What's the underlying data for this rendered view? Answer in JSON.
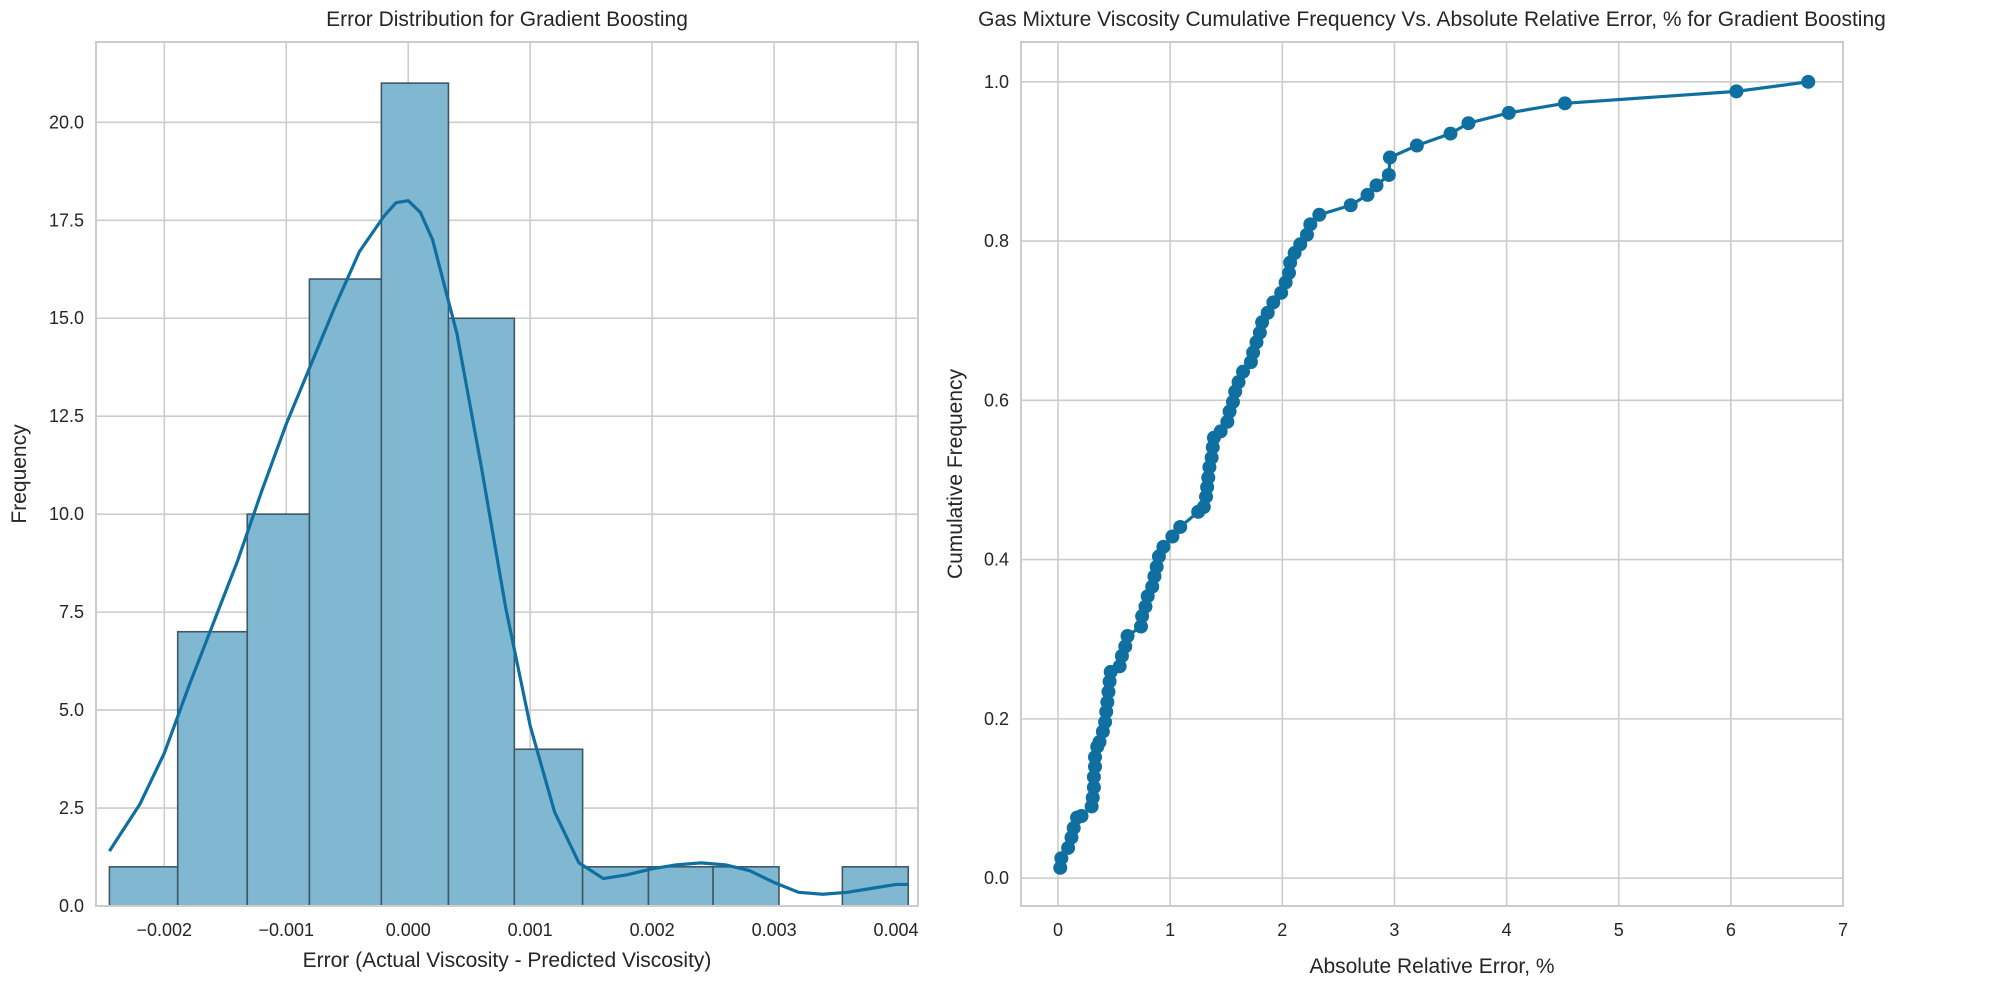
{
  "chart_data": [
    {
      "type": "bar",
      "subtype": "histogram_with_kde",
      "title": "Error Distribution for Gradient Boosting",
      "xlabel": "Error (Actual Viscosity - Predicted Viscosity)",
      "ylabel": "Frequency",
      "xlim": [
        -0.00256,
        0.00418
      ],
      "ylim": [
        0,
        22.05
      ],
      "xticks": [
        {
          "v": -0.002,
          "label": "−0.002"
        },
        {
          "v": -0.001,
          "label": "−0.001"
        },
        {
          "v": 0.0,
          "label": "0.000"
        },
        {
          "v": 0.001,
          "label": "0.001"
        },
        {
          "v": 0.002,
          "label": "0.002"
        },
        {
          "v": 0.003,
          "label": "0.003"
        },
        {
          "v": 0.004,
          "label": "0.004"
        }
      ],
      "yticks": [
        {
          "v": 0,
          "label": "0.0"
        },
        {
          "v": 2.5,
          "label": "2.5"
        },
        {
          "v": 5,
          "label": "5.0"
        },
        {
          "v": 7.5,
          "label": "7.5"
        },
        {
          "v": 10,
          "label": "10.0"
        },
        {
          "v": 12.5,
          "label": "12.5"
        },
        {
          "v": 15,
          "label": "15.0"
        },
        {
          "v": 17.5,
          "label": "17.5"
        },
        {
          "v": 20,
          "label": "20.0"
        }
      ],
      "bin_edges": [
        -0.00245,
        -0.00189,
        -0.00132,
        -0.00081,
        -0.00022,
        0.00033,
        0.00087,
        0.00143,
        0.00197,
        0.0025,
        0.00304,
        0.00356,
        0.0041
      ],
      "counts": [
        1,
        7,
        10,
        16,
        21,
        15,
        4,
        1,
        1,
        1,
        0,
        1
      ],
      "kde": {
        "x": [
          -0.00245,
          -0.0022,
          -0.002,
          -0.0018,
          -0.0016,
          -0.0014,
          -0.0012,
          -0.001,
          -0.0008,
          -0.0006,
          -0.0004,
          -0.0002,
          -0.0001,
          0.0,
          0.0001,
          0.0002,
          0.0004,
          0.0006,
          0.0008,
          0.001,
          0.0012,
          0.0014,
          0.0016,
          0.0018,
          0.002,
          0.0022,
          0.0024,
          0.0026,
          0.0028,
          0.003,
          0.0032,
          0.0034,
          0.0036,
          0.0038,
          0.004,
          0.0041
        ],
        "y": [
          1.4,
          2.6,
          3.9,
          5.6,
          7.2,
          8.8,
          10.6,
          12.3,
          13.8,
          15.3,
          16.7,
          17.6,
          17.95,
          18.0,
          17.7,
          17.0,
          14.6,
          11.2,
          7.6,
          4.6,
          2.4,
          1.1,
          0.7,
          0.8,
          0.95,
          1.05,
          1.1,
          1.05,
          0.9,
          0.6,
          0.35,
          0.3,
          0.35,
          0.45,
          0.55,
          0.55
        ]
      },
      "colors": {
        "bar_fill": "#80b8d1",
        "bar_edge": "#3f5865",
        "line": "#0f6fa0"
      },
      "grid": true
    },
    {
      "type": "line",
      "title": "Gas Mixture Viscosity Cumulative Frequency Vs. Absolute Relative Error, % for Gradient Boosting",
      "xlabel": "Absolute Relative Error, %",
      "ylabel": "Cumulative Frequency",
      "xlim": [
        -0.33,
        7.0
      ],
      "ylim": [
        -0.035,
        1.05
      ],
      "xticks": [
        {
          "v": 0,
          "label": "0"
        },
        {
          "v": 1,
          "label": "1"
        },
        {
          "v": 2,
          "label": "2"
        },
        {
          "v": 3,
          "label": "3"
        },
        {
          "v": 4,
          "label": "4"
        },
        {
          "v": 5,
          "label": "5"
        },
        {
          "v": 6,
          "label": "6"
        },
        {
          "v": 7,
          "label": "7"
        }
      ],
      "yticks": [
        {
          "v": 0.0,
          "label": "0.0"
        },
        {
          "v": 0.2,
          "label": "0.2"
        },
        {
          "v": 0.4,
          "label": "0.4"
        },
        {
          "v": 0.6,
          "label": "0.6"
        },
        {
          "v": 0.8,
          "label": "0.8"
        },
        {
          "v": 1.0,
          "label": "1.0"
        }
      ],
      "x": [
        0.02,
        0.03,
        0.09,
        0.12,
        0.14,
        0.17,
        0.21,
        0.3,
        0.31,
        0.32,
        0.32,
        0.33,
        0.33,
        0.35,
        0.37,
        0.4,
        0.42,
        0.43,
        0.44,
        0.45,
        0.46,
        0.47,
        0.55,
        0.57,
        0.6,
        0.62,
        0.74,
        0.75,
        0.78,
        0.8,
        0.84,
        0.86,
        0.88,
        0.9,
        0.94,
        1.02,
        1.09,
        1.25,
        1.3,
        1.32,
        1.33,
        1.34,
        1.35,
        1.37,
        1.38,
        1.39,
        1.45,
        1.51,
        1.53,
        1.56,
        1.58,
        1.61,
        1.65,
        1.72,
        1.74,
        1.77,
        1.8,
        1.82,
        1.87,
        1.92,
        1.99,
        2.03,
        2.06,
        2.07,
        2.11,
        2.16,
        2.22,
        2.25,
        2.33,
        2.61,
        2.76,
        2.84,
        2.95,
        2.96,
        3.2,
        3.5,
        3.66,
        4.02,
        4.52,
        6.05,
        6.69
      ],
      "y": [
        0.013,
        0.025,
        0.038,
        0.051,
        0.063,
        0.076,
        0.078,
        0.09,
        0.101,
        0.114,
        0.127,
        0.14,
        0.152,
        0.165,
        0.171,
        0.184,
        0.196,
        0.209,
        0.221,
        0.234,
        0.247,
        0.259,
        0.266,
        0.279,
        0.291,
        0.304,
        0.316,
        0.329,
        0.341,
        0.354,
        0.366,
        0.379,
        0.391,
        0.404,
        0.416,
        0.429,
        0.441,
        0.46,
        0.466,
        0.479,
        0.491,
        0.503,
        0.516,
        0.528,
        0.541,
        0.553,
        0.561,
        0.573,
        0.586,
        0.598,
        0.611,
        0.623,
        0.636,
        0.648,
        0.66,
        0.673,
        0.685,
        0.698,
        0.71,
        0.723,
        0.735,
        0.748,
        0.76,
        0.773,
        0.785,
        0.796,
        0.808,
        0.821,
        0.833,
        0.845,
        0.858,
        0.87,
        0.883,
        0.905,
        0.92,
        0.935,
        0.948,
        0.961,
        0.973,
        0.988,
        1.0
      ],
      "colors": {
        "line": "#0f6fa0",
        "marker": "#0f6fa0"
      },
      "grid": true
    }
  ]
}
